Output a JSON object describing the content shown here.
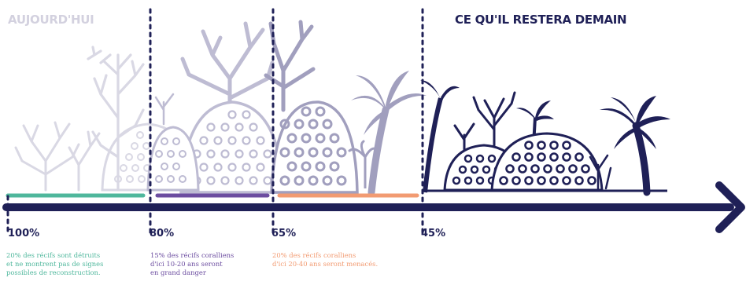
{
  "titles": {
    "today": "AUJOURD'HUI",
    "tomorrow": "CE QU'IL RESTERA DEMAIN"
  },
  "milestones": [
    {
      "label": "100%"
    },
    {
      "label": "80%"
    },
    {
      "label": "65%"
    },
    {
      "label": "45%"
    }
  ],
  "notes": {
    "green": [
      "20% des récifs sont détruits",
      "et ne montrent pas de signes",
      "possibles de reconstruction."
    ],
    "purple": [
      "15% des récifs coralliens",
      "d'ici 10-20 ans seront",
      "en grand danger"
    ],
    "orange": [
      "20% des récifs coralliens",
      "d'ici 20-40 ans seront menacés."
    ]
  },
  "colors": {
    "navy": "#1f2057",
    "stage1": "#d9d8e4",
    "stage2": "#bebcd3",
    "stage3": "#a19fbe",
    "green": "#4fb79c",
    "purple": "#6c4da0",
    "orange": "#f29b72"
  }
}
